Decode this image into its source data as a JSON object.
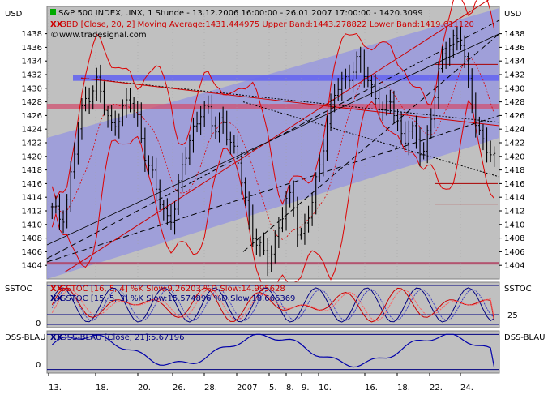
{
  "header": {
    "main_title": "S&P 500 INDEX, .INX, 1 Stunde - 13.12.2006 16:00:00 - 26.01.2007 17:00:00 - 1420.3099",
    "bbd_line": "BBD [Close, 20, 2] Moving Average:1431.444975 Upper Band:1443.278822 Lower Band:1419.611120",
    "source": "www.tradesignal.com",
    "stoch1_line": "SSTOC [16, 5, 4] %K Slow:9.26203 %D Slow:14.995628",
    "stoch2_line": "SSTOC [15, 5, 3] %K Slow:15.574896 %D Slow:18.666369",
    "dss_line": "DSS-BLAU [Close, 21]:5.67196"
  },
  "colors": {
    "panel_bg": "#c0c0c0",
    "channel_fill": "#9999dd",
    "bars": "#000000",
    "bands": "#dd0000",
    "blue_line": "#000080"
  },
  "chart_data": [
    {
      "type": "bar",
      "title": "S&P 500 INDEX, .INX, 1 Stunde",
      "ylabel_left": "USD",
      "ylabel_right": "USD",
      "ylim": [
        1402,
        1442
      ],
      "y_ticks": [
        1404,
        1406,
        1408,
        1410,
        1412,
        1414,
        1416,
        1418,
        1420,
        1422,
        1424,
        1426,
        1428,
        1430,
        1432,
        1434,
        1436,
        1438
      ],
      "x_tick_labels": [
        "13.",
        "18.",
        "20.",
        "26.",
        "28.",
        "2007",
        "5.",
        "8.",
        "9.",
        "10.",
        "16.",
        "18.",
        "22.",
        "24."
      ],
      "n_bars": 120,
      "close_path": [
        1412,
        1411,
        1412,
        1418,
        1424,
        1428,
        1430,
        1431,
        1427,
        1424,
        1426,
        1427,
        1428,
        1426,
        1422,
        1418,
        1415,
        1412,
        1411,
        1413,
        1418,
        1422,
        1425,
        1427,
        1426,
        1424,
        1426,
        1423,
        1420,
        1418,
        1412,
        1408,
        1406,
        1405,
        1407,
        1410,
        1413,
        1414,
        1408,
        1410,
        1413,
        1418,
        1424,
        1428,
        1430,
        1431,
        1433,
        1434,
        1432,
        1430,
        1429,
        1426,
        1428,
        1425,
        1423,
        1424,
        1422,
        1420,
        1425,
        1430,
        1434,
        1436,
        1438,
        1437,
        1430,
        1426,
        1423,
        1421,
        1419
      ],
      "horizontal_levels": [
        {
          "name": "blue-resistance",
          "value": 1431.5
        },
        {
          "name": "red-resistance",
          "value": 1427.3
        },
        {
          "name": "support",
          "value": 1404.3
        }
      ],
      "right_short_levels": [
        1433.5,
        1416.0,
        1413.0
      ],
      "bollinger": {
        "moving_average": 1431.444975,
        "upper": 1443.278822,
        "lower": 1419.61112
      }
    },
    {
      "type": "line",
      "title": "SSTOC",
      "ylabel": "SSTOC",
      "ylim": [
        0,
        100
      ],
      "y_ticks": [
        0,
        25
      ],
      "series": [
        {
          "name": "SSTOC [16, 5, 4] %K Slow",
          "last": 9.26203
        },
        {
          "name": "SSTOC [16, 5, 4] %D Slow",
          "last": 14.995628
        },
        {
          "name": "SSTOC [15, 5, 3] %K Slow",
          "last": 15.574896
        },
        {
          "name": "SSTOC [15, 5, 3] %D Slow",
          "last": 18.666369
        }
      ]
    },
    {
      "type": "line",
      "title": "DSS-BLAU",
      "ylabel": "DSS-BLAU",
      "ylim": [
        -10,
        110
      ],
      "y_ticks": [
        0
      ],
      "series": [
        {
          "name": "DSS-BLAU [Close, 21]",
          "last": 5.67196
        }
      ]
    }
  ]
}
